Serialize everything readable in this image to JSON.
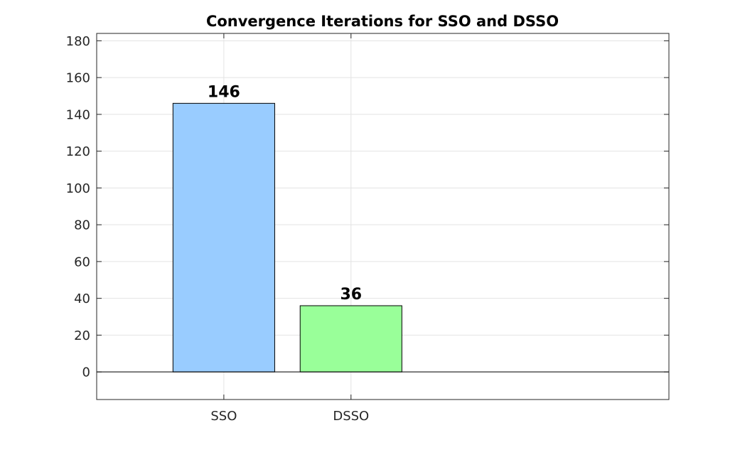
{
  "chart_data": {
    "type": "bar",
    "title": "Convergence Iterations for SSO and DSSO",
    "xlabel": "",
    "ylabel": "",
    "categories": [
      "SSO",
      "DSSO"
    ],
    "values": [
      146,
      36
    ],
    "data_labels": [
      "146",
      "36"
    ],
    "bar_colors": [
      "#99ccff",
      "#99ff99"
    ],
    "ylim": [
      -15,
      184
    ],
    "yticks": [
      0,
      20,
      40,
      60,
      80,
      100,
      120,
      140,
      160,
      180
    ],
    "ytick_labels": [
      "0",
      "20",
      "40",
      "60",
      "80",
      "100",
      "120",
      "140",
      "160",
      "180"
    ],
    "grid": true
  }
}
